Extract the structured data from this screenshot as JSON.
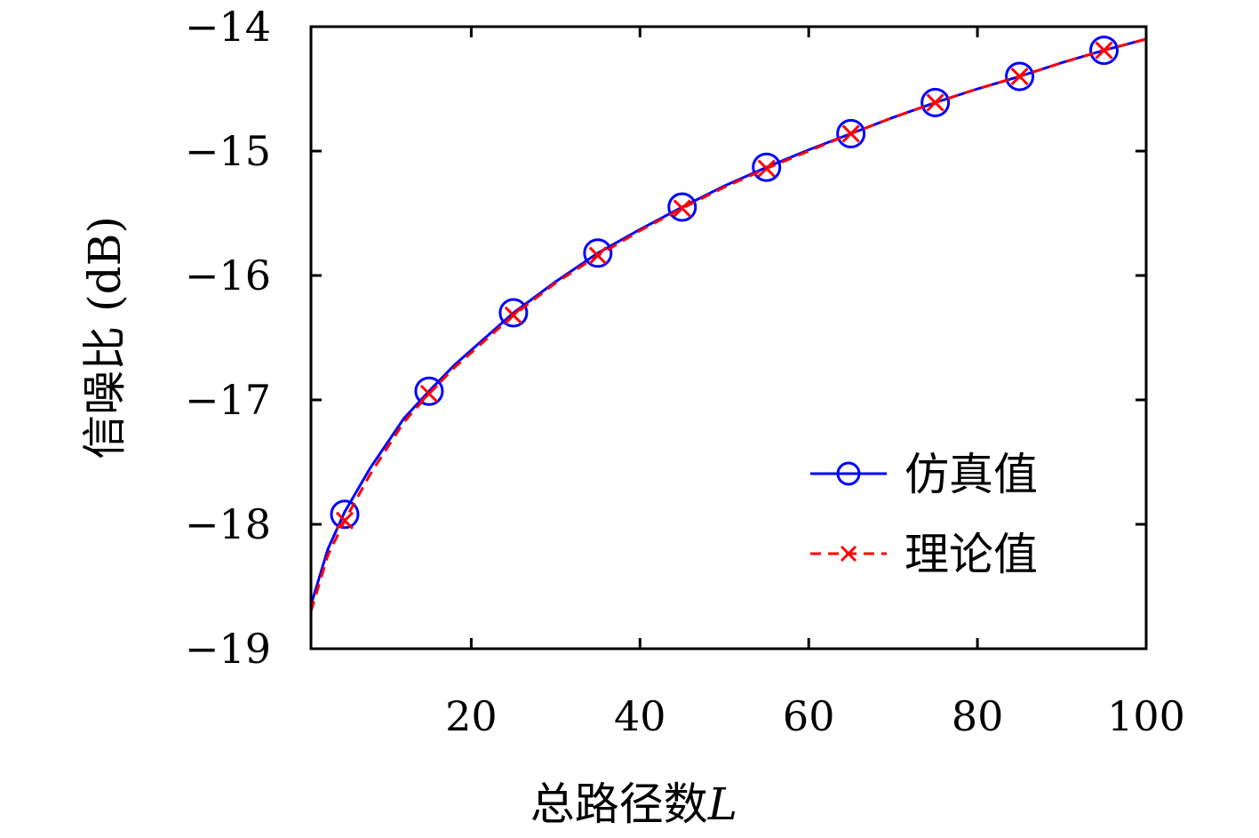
{
  "chart_data": {
    "type": "line",
    "xlabel": "总路径数",
    "xlabel_var": "L",
    "ylabel": "信噪比 (dB)",
    "xlim": [
      1,
      100
    ],
    "ylim": [
      -19,
      -14
    ],
    "x_ticks": [
      20,
      40,
      60,
      80,
      100
    ],
    "y_ticks": [
      -14,
      -15,
      -16,
      -17,
      -18,
      -19
    ],
    "y_tick_labels": [
      "−14",
      "−15",
      "−16",
      "−17",
      "−18",
      "−19"
    ],
    "grid": false,
    "legend_position": "lower-right",
    "series": [
      {
        "name": "仿真值",
        "color": "#0000ff",
        "line_style": "solid",
        "marker": "circle",
        "curve_x": [
          1,
          3,
          5,
          8,
          12,
          15,
          18,
          22,
          25,
          30,
          35,
          40,
          45,
          50,
          55,
          60,
          65,
          70,
          75,
          80,
          85,
          90,
          95,
          100
        ],
        "curve_y": [
          -18.65,
          -18.2,
          -17.9,
          -17.55,
          -17.15,
          -16.93,
          -16.72,
          -16.48,
          -16.3,
          -16.05,
          -15.82,
          -15.63,
          -15.45,
          -15.28,
          -15.13,
          -14.99,
          -14.86,
          -14.73,
          -14.61,
          -14.5,
          -14.4,
          -14.29,
          -14.19,
          -14.1
        ],
        "marker_x": [
          5,
          15,
          25,
          35,
          45,
          55,
          65,
          75,
          85,
          95
        ],
        "marker_y": [
          -17.92,
          -16.93,
          -16.3,
          -15.82,
          -15.45,
          -15.13,
          -14.86,
          -14.61,
          -14.4,
          -14.19
        ]
      },
      {
        "name": "理论值",
        "color": "#ff0000",
        "line_style": "dashed",
        "marker": "x",
        "curve_x": [
          1,
          3,
          5,
          8,
          12,
          15,
          18,
          22,
          25,
          30,
          35,
          40,
          45,
          50,
          55,
          60,
          65,
          70,
          75,
          80,
          85,
          90,
          95,
          100
        ],
        "curve_y": [
          -18.7,
          -18.25,
          -17.97,
          -17.6,
          -17.18,
          -16.95,
          -16.74,
          -16.5,
          -16.32,
          -16.06,
          -15.84,
          -15.64,
          -15.46,
          -15.29,
          -15.14,
          -15.0,
          -14.86,
          -14.73,
          -14.61,
          -14.5,
          -14.4,
          -14.29,
          -14.19,
          -14.1
        ],
        "marker_x": [
          5,
          15,
          25,
          35,
          45,
          55,
          65,
          75,
          85,
          95
        ],
        "marker_y": [
          -17.97,
          -16.95,
          -16.32,
          -15.84,
          -15.46,
          -15.14,
          -14.86,
          -14.61,
          -14.4,
          -14.19
        ]
      }
    ]
  }
}
